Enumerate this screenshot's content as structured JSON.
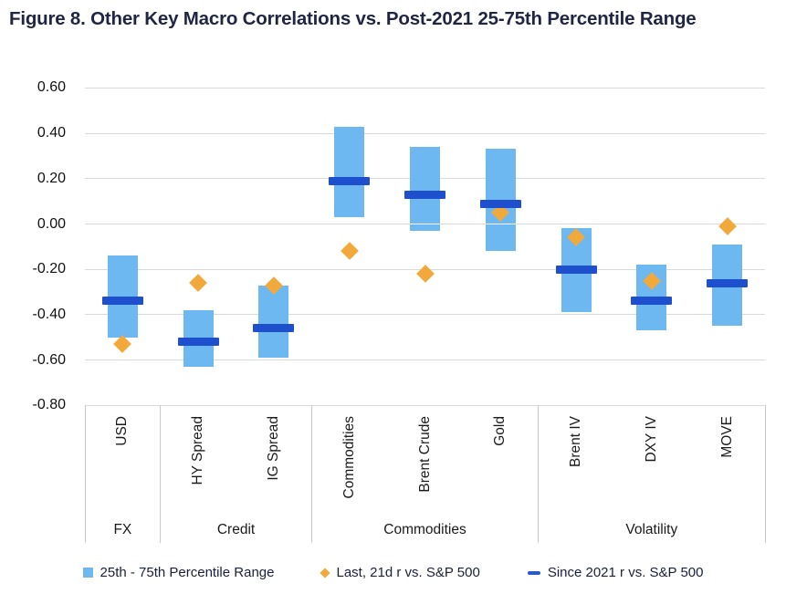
{
  "title": "Figure 8. Other Key Macro Correlations vs. Post-2021 25-75th Percentile Range",
  "colors": {
    "range_bar": "#6db8f0",
    "last_diamond": "#f2a93c",
    "since_dash": "#1e4fcd",
    "gridline": "#d9d9d9",
    "divider": "#c9c9c9",
    "title_text": "#1f2543",
    "background": "#ffffff"
  },
  "chart_data": {
    "type": "bar",
    "subtype": "floating-range-bar-with-markers",
    "title": "Figure 8. Other Key Macro Correlations vs. Post-2021 25-75th Percentile Range",
    "xlabel": "",
    "ylabel": "",
    "ylim": [
      -0.8,
      0.6
    ],
    "grid": true,
    "legend_position": "bottom",
    "yticks": [
      "0.60",
      "0.40",
      "0.20",
      "0.00",
      "-0.20",
      "-0.40",
      "-0.60",
      "-0.80"
    ],
    "categories": [
      "USD",
      "HY Spread",
      "IG Spread",
      "Commodities",
      "Brent Crude",
      "Gold",
      "Brent IV",
      "DXY IV",
      "MOVE"
    ],
    "group_of": [
      "FX",
      "Credit",
      "Credit",
      "Commodities",
      "Commodities",
      "Commodities",
      "Volatility",
      "Volatility",
      "Volatility"
    ],
    "groups": [
      "FX",
      "Credit",
      "Commodities",
      "Volatility"
    ],
    "series": [
      {
        "name": "25th - 75th Percentile Range",
        "type": "range",
        "low": [
          -0.5,
          -0.63,
          -0.59,
          0.03,
          -0.03,
          -0.12,
          -0.39,
          -0.47,
          -0.45
        ],
        "high": [
          -0.14,
          -0.38,
          -0.27,
          0.43,
          0.34,
          0.33,
          -0.02,
          -0.18,
          -0.09
        ]
      },
      {
        "name": "Last, 21d r vs. S&P 500",
        "type": "diamond",
        "values": [
          -0.53,
          -0.26,
          -0.27,
          -0.12,
          -0.22,
          0.05,
          -0.06,
          -0.25,
          -0.01
        ]
      },
      {
        "name": "Since 2021 r vs. S&P 500",
        "type": "dash",
        "values": [
          -0.34,
          -0.52,
          -0.46,
          0.19,
          0.13,
          0.09,
          -0.2,
          -0.34,
          -0.26
        ]
      }
    ]
  }
}
